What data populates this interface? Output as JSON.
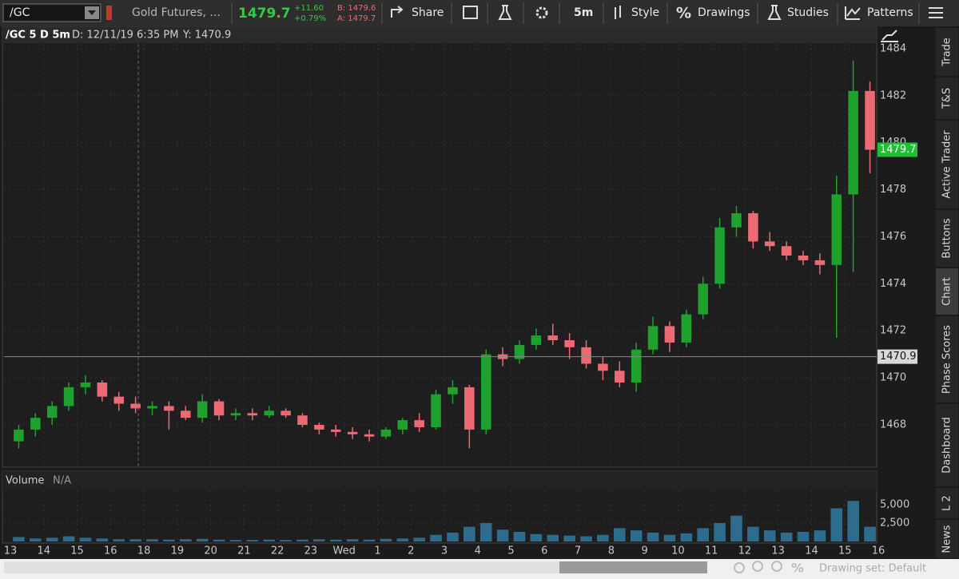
{
  "toolbar": {
    "symbol": "/GC",
    "description": "Gold Futures, ...",
    "last": "1479.7",
    "change": "+11.60",
    "change_pct": "+0.79%",
    "bid": "B: 1479.6",
    "ask": "A: 1479.7",
    "buttons": [
      "Share",
      "5m",
      "Style",
      "Drawings",
      "Studies",
      "Patterns"
    ]
  },
  "side_tabs": [
    "Trade",
    "T&S",
    "Active Trader",
    "Buttons",
    "Chart",
    "Phase Scores",
    "Dashboard",
    "L 2",
    "News"
  ],
  "chart_data": [
    {
      "type": "candlestick",
      "header": [
        "/GC 5 D 5m",
        "D: 12/11/19 6:35 PM",
        "Y: 1470.9"
      ],
      "up_color": "#1fa12d",
      "down_color": "#ec6a74",
      "grid": true,
      "ylim": [
        1466.2,
        1484.2
      ],
      "yticks": [
        1468,
        1470,
        1472,
        1474,
        1476,
        1478,
        1480,
        1482,
        1484
      ],
      "last": 1479.7,
      "cursor_y": 1470.9,
      "open": [
        1467.3,
        1467.8,
        1468.3,
        1468.8,
        1469.6,
        1469.8,
        1469.2,
        1468.9,
        1468.7,
        1468.8,
        1468.6,
        1468.3,
        1469.0,
        1468.4,
        1468.5,
        1468.4,
        1468.6,
        1468.4,
        1468.0,
        1467.8,
        1467.7,
        1467.6,
        1467.5,
        1467.8,
        1468.2,
        1467.9,
        1469.3,
        1469.6,
        1467.8,
        1471.0,
        1470.8,
        1471.4,
        1471.8,
        1471.6,
        1471.3,
        1470.6,
        1470.3,
        1469.8,
        1471.2,
        1472.2,
        1471.5,
        1472.7,
        1474.0,
        1476.4,
        1477.0,
        1475.8,
        1475.6,
        1475.2,
        1475.0,
        1474.8,
        1477.8,
        1482.2
      ],
      "high": [
        1468.0,
        1468.5,
        1469.0,
        1469.8,
        1470.1,
        1469.9,
        1469.4,
        1469.2,
        1469.0,
        1469.0,
        1468.8,
        1469.3,
        1469.1,
        1468.7,
        1468.7,
        1468.8,
        1468.7,
        1468.5,
        1468.1,
        1468.0,
        1467.9,
        1467.8,
        1467.9,
        1468.3,
        1468.5,
        1469.5,
        1469.9,
        1469.7,
        1471.2,
        1471.3,
        1471.6,
        1472.1,
        1472.3,
        1471.9,
        1471.6,
        1470.9,
        1470.7,
        1471.5,
        1472.6,
        1472.4,
        1472.9,
        1474.3,
        1476.8,
        1477.3,
        1477.1,
        1476.2,
        1475.8,
        1475.4,
        1475.3,
        1478.6,
        1483.5,
        1482.6
      ],
      "low": [
        1467.0,
        1467.5,
        1468.0,
        1468.6,
        1469.3,
        1469.0,
        1468.6,
        1468.5,
        1468.4,
        1467.8,
        1468.2,
        1468.1,
        1468.2,
        1468.2,
        1468.2,
        1468.3,
        1468.3,
        1467.9,
        1467.6,
        1467.5,
        1467.4,
        1467.3,
        1467.4,
        1467.6,
        1467.7,
        1467.8,
        1468.9,
        1467.0,
        1467.6,
        1470.5,
        1470.6,
        1471.2,
        1471.4,
        1470.8,
        1470.4,
        1469.9,
        1469.6,
        1469.4,
        1471.0,
        1471.1,
        1471.3,
        1472.5,
        1473.8,
        1476.0,
        1475.5,
        1475.4,
        1475.0,
        1474.8,
        1474.4,
        1471.7,
        1474.5,
        1478.7
      ],
      "close": [
        1467.8,
        1468.3,
        1468.8,
        1469.6,
        1469.8,
        1469.2,
        1468.9,
        1468.7,
        1468.8,
        1468.6,
        1468.3,
        1469.0,
        1468.4,
        1468.5,
        1468.4,
        1468.6,
        1468.4,
        1468.0,
        1467.8,
        1467.7,
        1467.6,
        1467.5,
        1467.8,
        1468.2,
        1467.9,
        1469.3,
        1469.6,
        1467.8,
        1471.0,
        1470.8,
        1471.4,
        1471.8,
        1471.6,
        1471.3,
        1470.6,
        1470.3,
        1469.8,
        1471.2,
        1472.2,
        1471.5,
        1472.7,
        1474.0,
        1476.4,
        1477.0,
        1475.8,
        1475.6,
        1475.2,
        1475.0,
        1474.8,
        1477.8,
        1482.2,
        1479.7
      ]
    },
    {
      "type": "bar",
      "title": "Volume",
      "subtitle": "N/A",
      "color": "#2f6b8c",
      "ylim": [
        0,
        6500
      ],
      "yticks": [
        {
          "value": 2500,
          "label": "2,500"
        },
        {
          "value": 5000,
          "label": "5,000"
        }
      ],
      "values": [
        600,
        400,
        500,
        700,
        500,
        400,
        300,
        300,
        300,
        250,
        300,
        350,
        250,
        200,
        200,
        250,
        200,
        250,
        300,
        250,
        300,
        250,
        350,
        400,
        500,
        900,
        1200,
        2000,
        2500,
        1600,
        1300,
        1000,
        900,
        800,
        700,
        900,
        1800,
        1500,
        1200,
        900,
        1100,
        1800,
        2500,
        3500,
        2000,
        1500,
        1200,
        1300,
        1500,
        4500,
        5500,
        2000
      ],
      "xtick_labels": [
        "13",
        "14",
        "15",
        "16",
        "18",
        "19",
        "20",
        "21",
        "22",
        "23",
        "Wed",
        "1",
        "2",
        "3",
        "4",
        "5",
        "6",
        "7",
        "8",
        "9",
        "10",
        "11",
        "12",
        "13",
        "14",
        "15",
        "16"
      ]
    }
  ],
  "footer": {
    "drawing_set": "Drawing set: Default"
  }
}
